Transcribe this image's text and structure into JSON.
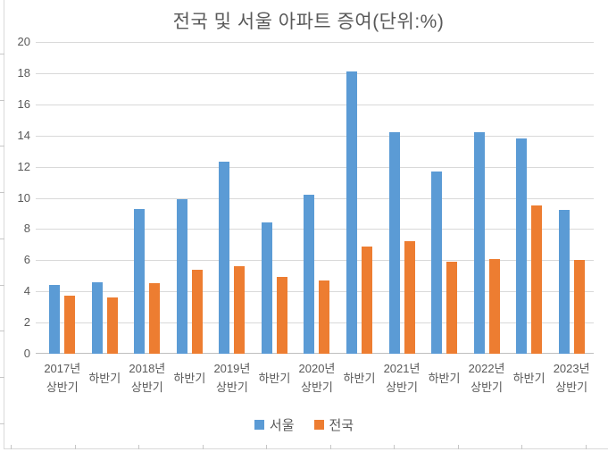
{
  "chart_data": {
    "type": "bar",
    "title": "전국 및 서울 아파트 증여(단위:%)",
    "categories": [
      "2017년 상반기",
      "하반기",
      "2018년 상반기",
      "하반기",
      "2019년 상반기",
      "하반기",
      "2020년 상반기",
      "하반기",
      "2021년 상반기",
      "하반기",
      "2022년 상반기",
      "하반기",
      "2023년 상반기"
    ],
    "series": [
      {
        "name": "서울",
        "color": "#5B9BD5",
        "values": [
          4.4,
          4.6,
          9.3,
          9.9,
          12.3,
          8.4,
          10.2,
          18.1,
          14.2,
          11.7,
          14.2,
          13.8,
          9.2
        ]
      },
      {
        "name": "전국",
        "color": "#ED7D31",
        "values": [
          3.7,
          3.6,
          4.5,
          5.4,
          5.6,
          4.9,
          4.7,
          6.9,
          7.2,
          5.9,
          6.1,
          9.5,
          6.0
        ]
      }
    ],
    "ylim": [
      0,
      20
    ],
    "ytick_step": 2,
    "yticks": [
      0,
      2,
      4,
      6,
      8,
      10,
      12,
      14,
      16,
      18,
      20
    ],
    "grid": true,
    "legend_position": "bottom",
    "colors": {
      "gridline": "#D9D9D9",
      "axis_line": "#BFBFBF",
      "text": "#595959"
    }
  }
}
